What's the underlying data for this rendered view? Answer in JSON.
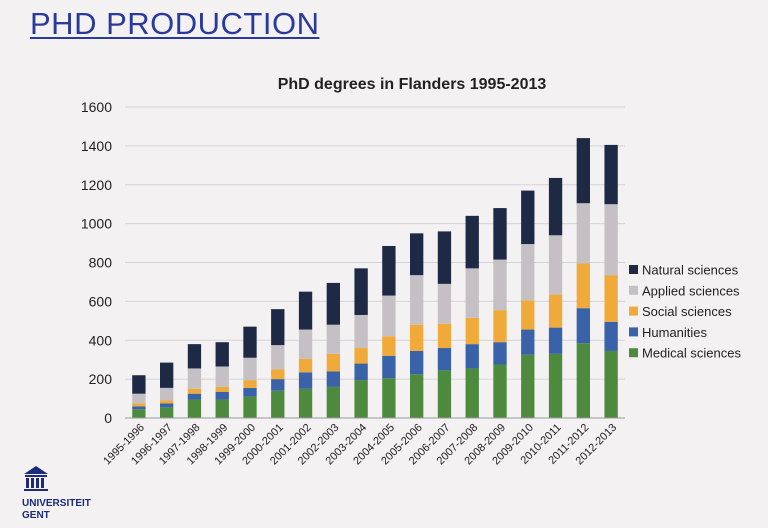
{
  "slide": {
    "title": "PHD PRODUCTION"
  },
  "logo": {
    "line1": "UNIVERSITEIT",
    "line2": "GENT"
  },
  "colors": {
    "title": "#2a3a9a",
    "grid": "#d6d3d5",
    "axis": "#9a9a9a"
  },
  "chart_data": {
    "type": "bar",
    "stacked": true,
    "title": "PhD degrees in Flanders 1995-2013",
    "xlabel": "",
    "ylabel": "",
    "ylim": [
      0,
      1600
    ],
    "yticks": [
      0,
      200,
      400,
      600,
      800,
      1000,
      1200,
      1400,
      1600
    ],
    "grid": true,
    "legend_position": "right",
    "categories": [
      "1995-1996",
      "1996-1997",
      "1997-1998",
      "1998-1999",
      "1999-2000",
      "2000-2001",
      "2001-2002",
      "2002-2003",
      "2003-2004",
      "2004-2005",
      "2005-2006",
      "2006-2007",
      "2007-2008",
      "2008-2009",
      "2009-2010",
      "2010-2011",
      "2011-2012",
      "2012-2013"
    ],
    "series": [
      {
        "name": "Medical sciences",
        "color": "#4e8a3e",
        "values": [
          45,
          55,
          95,
          95,
          110,
          140,
          150,
          160,
          195,
          205,
          225,
          245,
          255,
          275,
          325,
          330,
          385,
          345
        ]
      },
      {
        "name": "Humanities",
        "color": "#3a62a8",
        "values": [
          15,
          20,
          30,
          40,
          45,
          60,
          85,
          80,
          85,
          115,
          120,
          115,
          125,
          115,
          130,
          135,
          180,
          150
        ]
      },
      {
        "name": "Social sciences",
        "color": "#f0aa3a",
        "values": [
          15,
          15,
          25,
          25,
          40,
          50,
          70,
          90,
          80,
          100,
          135,
          125,
          135,
          165,
          150,
          170,
          230,
          240
        ]
      },
      {
        "name": "Applied sciences",
        "color": "#c4c0c3",
        "values": [
          50,
          65,
          105,
          105,
          115,
          125,
          150,
          150,
          170,
          210,
          255,
          205,
          255,
          260,
          290,
          305,
          310,
          365
        ]
      },
      {
        "name": "Natural sciences",
        "color": "#1e2a45",
        "values": [
          95,
          130,
          125,
          125,
          160,
          185,
          195,
          215,
          240,
          255,
          215,
          270,
          270,
          265,
          275,
          295,
          335,
          305
        ]
      }
    ]
  }
}
